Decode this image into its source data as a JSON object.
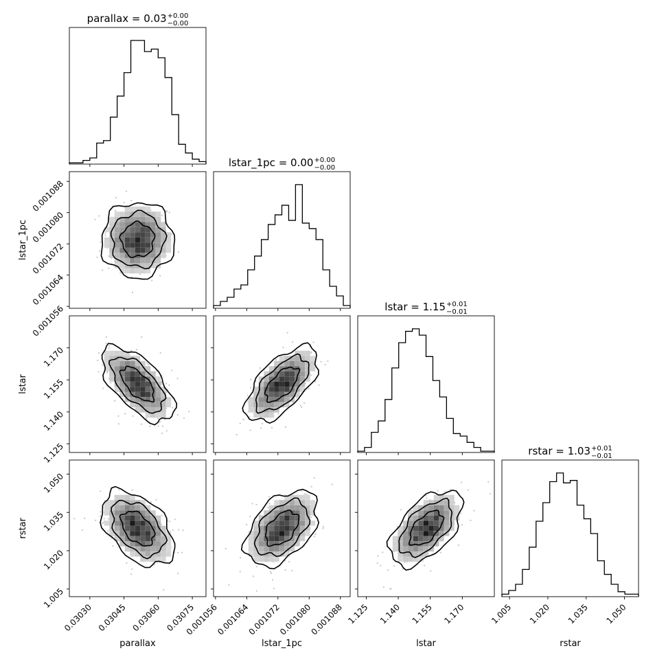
{
  "chart_data": {
    "type": "corner",
    "parameters": [
      "parallax",
      "lstar_1pc",
      "lstar",
      "rstar"
    ],
    "axis_labels": {
      "x": [
        "parallax",
        "lstar_1pc",
        "lstar",
        "rstar"
      ],
      "y": [
        "lstar_1pc",
        "lstar",
        "rstar"
      ]
    },
    "titles": [
      {
        "param": "parallax",
        "text": "parallax = 0.03",
        "sup": "+0.00",
        "sub": "−0.00"
      },
      {
        "param": "lstar_1pc",
        "text": "lstar_1pc = 0.00",
        "sup": "+0.00",
        "sub": "−0.00"
      },
      {
        "param": "lstar",
        "text": "lstar = 1.15",
        "sup": "+0.01",
        "sub": "−0.01"
      },
      {
        "param": "rstar",
        "text": "rstar = 1.03",
        "sup": "+0.01",
        "sub": "−0.01"
      }
    ],
    "ranges": {
      "parallax": [
        0.03021,
        0.03081
      ],
      "lstar_1pc": [
        0.0010555,
        0.0010905
      ],
      "lstar": [
        1.121,
        1.185
      ],
      "rstar": [
        1.002,
        1.0555
      ]
    },
    "ticks": {
      "parallax": [
        "0.03030",
        "0.03045",
        "0.03060",
        "0.03075"
      ],
      "lstar_1pc": [
        "0.001056",
        "0.001064",
        "0.001072",
        "0.001080",
        "0.001088"
      ],
      "lstar": [
        "1.125",
        "1.140",
        "1.155",
        "1.170"
      ],
      "rstar": [
        "1.005",
        "1.020",
        "1.035",
        "1.050"
      ]
    },
    "histograms": [
      {
        "param": "parallax",
        "counts": [
          1,
          1,
          3,
          5,
          17,
          19,
          38,
          55,
          74,
          100,
          100,
          91,
          93,
          86,
          70,
          40,
          16,
          9,
          4,
          2
        ]
      },
      {
        "param": "lstar_1pc",
        "counts": [
          2,
          5,
          8,
          14,
          17,
          28,
          38,
          50,
          61,
          68,
          75,
          64,
          90,
          62,
          58,
          50,
          28,
          16,
          9,
          2
        ]
      },
      {
        "param": "lstar",
        "counts": [
          1,
          4,
          16,
          25,
          42,
          67,
          87,
          96,
          98,
          93,
          76,
          57,
          44,
          27,
          15,
          13,
          8,
          4,
          1,
          1
        ]
      },
      {
        "param": "rstar",
        "counts": [
          2,
          5,
          10,
          22,
          40,
          61,
          76,
          93,
          100,
          92,
          94,
          74,
          63,
          51,
          29,
          18,
          10,
          4,
          2,
          2
        ]
      }
    ],
    "correlations": {
      "lstar_1pc|parallax": 0.0,
      "lstar|parallax": -0.62,
      "lstar|lstar_1pc": 0.62,
      "rstar|parallax": -0.45,
      "rstar|lstar_1pc": 0.45,
      "rstar|lstar": 0.55
    }
  }
}
